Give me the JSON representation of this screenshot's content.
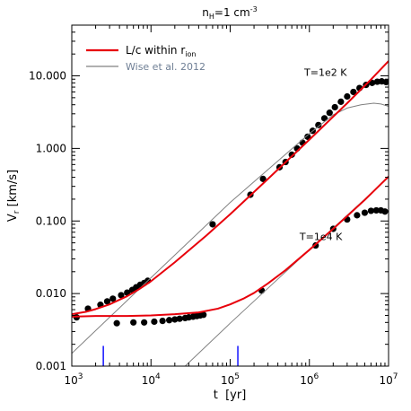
{
  "chart_data": {
    "type": "scatter",
    "title": "n_H=1 cm^-3",
    "title_main": "n",
    "title_sub": "H",
    "title_mid": "=1 cm",
    "title_sup": "-3",
    "xlabel": "t  [yr]",
    "ylabel_main": "V",
    "ylabel_sub": "r",
    "ylabel_rest": " [km/s]",
    "xscale": "log",
    "yscale": "log",
    "xlim": [
      1000,
      10000000
    ],
    "ylim": [
      0.001,
      50
    ],
    "grid": false,
    "x_ticks": [
      {
        "value": 1000,
        "base": "10",
        "exp": "3"
      },
      {
        "value": 10000,
        "base": "10",
        "exp": "4"
      },
      {
        "value": 100000,
        "base": "10",
        "exp": "5"
      },
      {
        "value": 1000000,
        "base": "10",
        "exp": "6"
      },
      {
        "value": 10000000,
        "base": "10",
        "exp": "7"
      }
    ],
    "y_ticks": [
      {
        "value": 0.001,
        "label": "0.001"
      },
      {
        "value": 0.01,
        "label": "0.010"
      },
      {
        "value": 0.1,
        "label": "0.100"
      },
      {
        "value": 1,
        "label": "1.000"
      },
      {
        "value": 10,
        "label": "10.000"
      }
    ],
    "legend": {
      "placement": "top-left",
      "entries": [
        {
          "text_main": "L/c within r",
          "text_sub": "ion",
          "color": "#e8000b",
          "width": "thick"
        },
        {
          "text_main": "Wise et al. 2012",
          "text_sub": "",
          "color": "#808080",
          "width": "thin"
        }
      ]
    },
    "annotations": [
      {
        "text": "T=1e2 K",
        "x": 1600000,
        "y": 10
      },
      {
        "text": "T=1e4 K",
        "x": 1400000,
        "y": 0.055
      }
    ],
    "markers": [
      {
        "x": 2500,
        "y_from": 0.001,
        "y_to": 0.0019,
        "color": "#0000ff"
      },
      {
        "x": 125000,
        "y_from": 0.001,
        "y_to": 0.0019,
        "color": "#0000ff"
      }
    ],
    "series": [
      {
        "kind": "points",
        "color": "#000000",
        "points": [
          [
            1150,
            0.0047
          ],
          [
            1600,
            0.0062
          ],
          [
            2300,
            0.007
          ],
          [
            2800,
            0.0078
          ],
          [
            3300,
            0.0085
          ],
          [
            4200,
            0.0095
          ],
          [
            5000,
            0.0103
          ],
          [
            5800,
            0.0112
          ],
          [
            6500,
            0.0122
          ],
          [
            7300,
            0.0132
          ],
          [
            8200,
            0.014
          ],
          [
            9100,
            0.015
          ],
          [
            60000,
            0.09
          ],
          [
            180000,
            0.23
          ],
          [
            260000,
            0.38
          ],
          [
            420000,
            0.55
          ],
          [
            500000,
            0.65
          ],
          [
            600000,
            0.82
          ],
          [
            700000,
            1.0
          ],
          [
            820000,
            1.2
          ],
          [
            950000,
            1.45
          ],
          [
            1100000,
            1.75
          ],
          [
            1300000,
            2.1
          ],
          [
            1550000,
            2.6
          ],
          [
            1800000,
            3.1
          ],
          [
            2100000,
            3.7
          ],
          [
            2500000,
            4.4
          ],
          [
            3000000,
            5.2
          ],
          [
            3600000,
            6.0
          ],
          [
            4300000,
            6.8
          ],
          [
            5200000,
            7.5
          ],
          [
            6200000,
            8.0
          ],
          [
            7200000,
            8.3
          ],
          [
            8200000,
            8.4
          ],
          [
            9300000,
            8.2
          ]
        ]
      },
      {
        "kind": "points",
        "color": "#000000",
        "points": [
          [
            3700,
            0.0039
          ],
          [
            6000,
            0.004
          ],
          [
            8200,
            0.004
          ],
          [
            11000,
            0.0041
          ],
          [
            14000,
            0.0042
          ],
          [
            17000,
            0.0043
          ],
          [
            20000,
            0.0044
          ],
          [
            23000,
            0.0045
          ],
          [
            27000,
            0.0046
          ],
          [
            30000,
            0.0047
          ],
          [
            34000,
            0.0048
          ],
          [
            38000,
            0.0049
          ],
          [
            42000,
            0.005
          ],
          [
            46000,
            0.0051
          ],
          [
            250000,
            0.011
          ],
          [
            1200000,
            0.046
          ],
          [
            2000000,
            0.078
          ],
          [
            3000000,
            0.105
          ],
          [
            4000000,
            0.12
          ],
          [
            5000000,
            0.13
          ],
          [
            6000000,
            0.138
          ],
          [
            7000000,
            0.14
          ],
          [
            8000000,
            0.14
          ],
          [
            9000000,
            0.135
          ]
        ]
      },
      {
        "kind": "line",
        "color": "#808080",
        "width": "thin",
        "points": [
          [
            1000,
            0.0015
          ],
          [
            10000,
            0.0165
          ],
          [
            100000,
            0.18
          ],
          [
            1000000,
            1.6
          ],
          [
            2000000,
            2.9
          ],
          [
            3000000,
            3.6
          ],
          [
            4500000,
            4.0
          ],
          [
            6500000,
            4.2
          ],
          [
            8000000,
            4.1
          ],
          [
            10000000,
            3.8
          ]
        ]
      },
      {
        "kind": "line",
        "color": "#808080",
        "width": "thin",
        "points": [
          [
            27000,
            0.001
          ],
          [
            100000,
            0.0039
          ],
          [
            1000000,
            0.04
          ],
          [
            3000000,
            0.12
          ],
          [
            10000000,
            0.4
          ]
        ]
      },
      {
        "kind": "line",
        "color": "#e8000b",
        "width": "thick",
        "points": [
          [
            1000,
            0.0052
          ],
          [
            1500,
            0.0056
          ],
          [
            2000,
            0.0061
          ],
          [
            3000,
            0.0071
          ],
          [
            5000,
            0.0092
          ],
          [
            7000,
            0.0114
          ],
          [
            10000,
            0.0148
          ],
          [
            20000,
            0.027
          ],
          [
            50000,
            0.063
          ],
          [
            100000,
            0.124
          ],
          [
            300000,
            0.38
          ],
          [
            1000000,
            1.32
          ],
          [
            3000000,
            4.2
          ],
          [
            6000000,
            8.9
          ],
          [
            10000000,
            16.0
          ]
        ]
      },
      {
        "kind": "line",
        "color": "#e8000b",
        "width": "thick",
        "points": [
          [
            1000,
            0.0048
          ],
          [
            2000,
            0.0049
          ],
          [
            5000,
            0.0049
          ],
          [
            10000,
            0.005
          ],
          [
            20000,
            0.0052
          ],
          [
            40000,
            0.0055
          ],
          [
            70000,
            0.0062
          ],
          [
            100000,
            0.0071
          ],
          [
            150000,
            0.0086
          ],
          [
            200000,
            0.0102
          ],
          [
            300000,
            0.0138
          ],
          [
            500000,
            0.021
          ],
          [
            1000000,
            0.04
          ],
          [
            2000000,
            0.078
          ],
          [
            5000000,
            0.195
          ],
          [
            10000000,
            0.41
          ]
        ]
      }
    ]
  }
}
